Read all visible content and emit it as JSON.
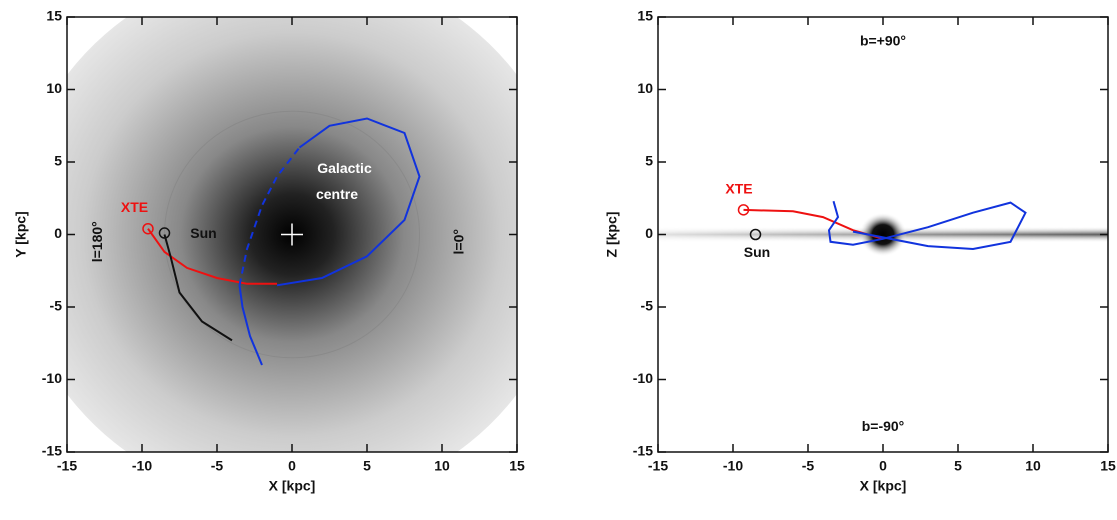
{
  "chart_data": [
    {
      "type": "line",
      "xlabel": "X [kpc]",
      "ylabel": "Y [kpc]",
      "xlim": [
        -15,
        15
      ],
      "ylim": [
        -15,
        15
      ],
      "xticks": [
        -15,
        -10,
        -5,
        0,
        5,
        10,
        15
      ],
      "yticks": [
        -15,
        -10,
        -5,
        0,
        5,
        10,
        15
      ],
      "background": "radial",
      "circles": [
        {
          "x": 0,
          "y": 0,
          "r": 8.5,
          "color": "#8a8a8a"
        }
      ],
      "series": [
        {
          "color": "#ee1111",
          "x": [
            -9.6,
            -8.5,
            -7,
            -5,
            -3,
            -1
          ],
          "values": [
            0.4,
            -1.2,
            -2.3,
            -3,
            -3.4,
            -3.4
          ]
        },
        {
          "color": "#111111",
          "x": [
            -4,
            -6,
            -7.5,
            -8.1,
            -8.5
          ],
          "values": [
            -7.3,
            -6,
            -4,
            -1.5,
            0
          ]
        },
        {
          "color": "#1133dd",
          "x": [
            -2,
            -2.8,
            -3.3,
            -3.5
          ],
          "values": [
            -9,
            -7,
            -5,
            -3.5
          ]
        },
        {
          "color": "#1133dd",
          "dash": true,
          "x": [
            -3.5,
            -3,
            -2,
            -1,
            0.5
          ],
          "values": [
            -3.5,
            -1,
            2,
            4,
            6
          ]
        },
        {
          "color": "#1133dd",
          "x": [
            0.5,
            2.5,
            5,
            7.5,
            8.5,
            7.5,
            5,
            2,
            -1
          ],
          "values": [
            6,
            7.5,
            8,
            7,
            4,
            1,
            -1.5,
            -3,
            -3.5
          ]
        }
      ],
      "markers": [
        {
          "x": -9.6,
          "y": 0.4,
          "shape": "circle",
          "color": "#ee1111"
        },
        {
          "x": -8.5,
          "y": 0.1,
          "shape": "circle",
          "color": "#111111"
        },
        {
          "x": 0,
          "y": 0,
          "shape": "cross",
          "color": "#ffffff"
        }
      ],
      "annotations": [
        {
          "text": "XTE",
          "x": -10.5,
          "y": 1.8,
          "color": "#ee1111"
        },
        {
          "text": "Sun",
          "x": -5.9,
          "y": 0,
          "color": "#111111"
        },
        {
          "text": "Galactic",
          "x": 3.5,
          "y": 4.5,
          "color": "#ffffff"
        },
        {
          "text": "centre",
          "x": 3,
          "y": 2.7,
          "color": "#ffffff"
        },
        {
          "text": "l=180°",
          "x": -12.9,
          "y": -0.5,
          "color": "#111111",
          "rotation": -90
        },
        {
          "text": "l=0°",
          "x": 11.2,
          "y": -0.5,
          "color": "#111111",
          "rotation": -90
        }
      ]
    },
    {
      "type": "line",
      "xlabel": "X [kpc]",
      "ylabel": "Z [kpc]",
      "xlim": [
        -15,
        15
      ],
      "ylim": [
        -15,
        15
      ],
      "xticks": [
        -15,
        -10,
        -5,
        0,
        5,
        10,
        15
      ],
      "yticks": [
        -15,
        -10,
        -5,
        0,
        5,
        10,
        15
      ],
      "background": "disc",
      "series": [
        {
          "color": "#ee1111",
          "x": [
            -9.3,
            -6,
            -4,
            -2,
            0
          ],
          "values": [
            1.7,
            1.6,
            1.2,
            0.3,
            -0.3
          ]
        },
        {
          "color": "#1133dd",
          "x": [
            -3.3,
            -3,
            -3.6,
            -3.5,
            -2,
            0,
            3,
            6,
            8.5,
            9.5,
            8.5,
            6,
            3,
            0,
            -2
          ],
          "values": [
            2.3,
            1.2,
            0.3,
            -0.5,
            -0.7,
            -0.3,
            0.5,
            1.5,
            2.2,
            1.5,
            -0.5,
            -1,
            -0.8,
            -0.2,
            0.2
          ]
        }
      ],
      "markers": [
        {
          "x": -9.3,
          "y": 1.7,
          "shape": "circle",
          "color": "#ee1111"
        },
        {
          "x": -8.5,
          "y": 0,
          "shape": "circle",
          "color": "#111111"
        }
      ],
      "annotations": [
        {
          "text": "XTE",
          "x": -9.6,
          "y": 3.1,
          "color": "#ee1111"
        },
        {
          "text": "Sun",
          "x": -8.4,
          "y": -1.3,
          "color": "#111111"
        },
        {
          "text": "b=+90°",
          "x": 0,
          "y": 13.3,
          "color": "#111111"
        },
        {
          "text": "b=-90°",
          "x": 0,
          "y": -13.3,
          "color": "#111111"
        }
      ]
    }
  ]
}
